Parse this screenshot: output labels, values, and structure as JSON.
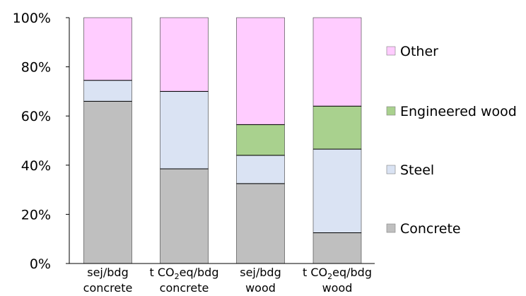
{
  "chart_data": {
    "type": "bar",
    "stacked": true,
    "percent": true,
    "categories": [
      [
        "sej/bdg",
        "concrete"
      ],
      [
        "t CO2eq/bdg",
        "concrete"
      ],
      [
        "sej/bdg",
        "wood"
      ],
      [
        "t CO2eq/bdg",
        "wood"
      ]
    ],
    "series": [
      {
        "name": "Concrete",
        "color": "#bfbfbf",
        "values": [
          66,
          38.5,
          32.5,
          12.5
        ]
      },
      {
        "name": "Steel",
        "color": "#dae3f3",
        "values": [
          8.5,
          31.5,
          11.5,
          34
        ]
      },
      {
        "name": "Engineered wood",
        "color": "#a9d18e",
        "values": [
          0,
          0,
          12.5,
          17.5
        ]
      },
      {
        "name": "Other",
        "color": "#ffccff",
        "values": [
          25.5,
          30,
          43.5,
          36
        ]
      }
    ],
    "ylim": [
      0,
      100
    ],
    "yticks": [
      "0%",
      "20%",
      "40%",
      "60%",
      "80%",
      "100%"
    ],
    "grid": false,
    "legend_position": "right",
    "legend_order": [
      "Other",
      "Engineered wood",
      "Steel",
      "Concrete"
    ]
  }
}
